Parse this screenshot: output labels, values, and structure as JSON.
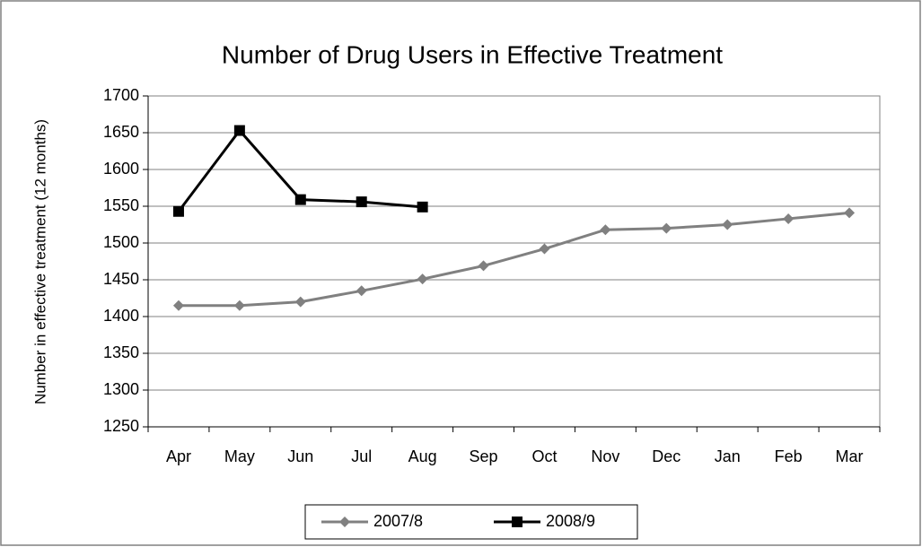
{
  "chart_data": {
    "type": "line",
    "title": "Number of Drug Users in Effective Treatment",
    "y_label": "Number in effective treatment (12 months)",
    "categories": [
      "Apr",
      "May",
      "Jun",
      "Jul",
      "Aug",
      "Sep",
      "Oct",
      "Nov",
      "Dec",
      "Jan",
      "Feb",
      "Mar"
    ],
    "series": [
      {
        "name": "2007/8",
        "color": "#808080",
        "marker": "diamond",
        "values": [
          1415,
          1415,
          1420,
          1435,
          1451,
          1469,
          1492,
          1518,
          1520,
          1525,
          1533,
          1541
        ]
      },
      {
        "name": "2008/9",
        "color": "#000000",
        "marker": "square",
        "values": [
          1543,
          1653,
          1559,
          1556,
          1549,
          null,
          null,
          null,
          null,
          null,
          null,
          null
        ]
      }
    ],
    "ylim": [
      1250,
      1700
    ],
    "yticks": [
      1250,
      1300,
      1350,
      1400,
      1450,
      1500,
      1550,
      1600,
      1650,
      1700
    ],
    "grid": true,
    "legend": "bottom"
  }
}
